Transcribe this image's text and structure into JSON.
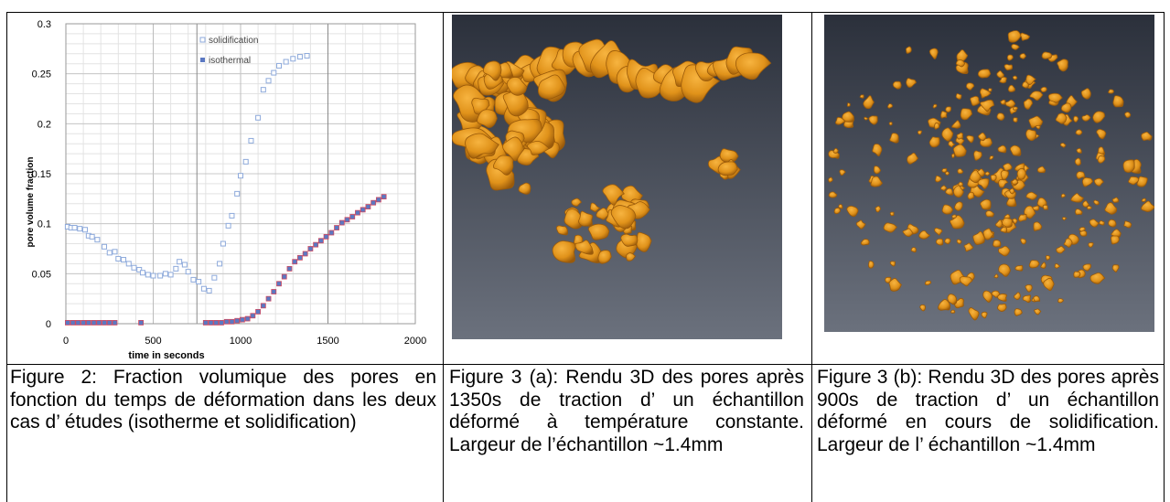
{
  "chart_data": {
    "type": "scatter",
    "xlabel": "time in seconds",
    "ylabel": "pore volume fraction",
    "xlim": [
      0,
      2000
    ],
    "ylim": [
      0,
      0.3
    ],
    "x_ticks": [
      "0",
      "500",
      "1000",
      "1500",
      "2000"
    ],
    "y_ticks": [
      "0",
      "0.05",
      "0.1",
      "0.15",
      "0.2",
      "0.25",
      "0.3"
    ],
    "grid": true,
    "legend": "top-right",
    "series": [
      {
        "name": "solidification",
        "marker": "hollow-square",
        "color": "#8eaadb",
        "points": [
          [
            10,
            0.097
          ],
          [
            30,
            0.096
          ],
          [
            50,
            0.096
          ],
          [
            80,
            0.095
          ],
          [
            110,
            0.094
          ],
          [
            130,
            0.088
          ],
          [
            150,
            0.087
          ],
          [
            180,
            0.084
          ],
          [
            220,
            0.077
          ],
          [
            250,
            0.071
          ],
          [
            280,
            0.072
          ],
          [
            300,
            0.065
          ],
          [
            330,
            0.064
          ],
          [
            360,
            0.06
          ],
          [
            390,
            0.056
          ],
          [
            420,
            0.054
          ],
          [
            440,
            0.051
          ],
          [
            470,
            0.049
          ],
          [
            500,
            0.048
          ],
          [
            540,
            0.048
          ],
          [
            570,
            0.05
          ],
          [
            600,
            0.049
          ],
          [
            630,
            0.055
          ],
          [
            650,
            0.062
          ],
          [
            680,
            0.059
          ],
          [
            700,
            0.052
          ],
          [
            730,
            0.044
          ],
          [
            760,
            0.042
          ],
          [
            790,
            0.035
          ],
          [
            820,
            0.033
          ],
          [
            850,
            0.046
          ],
          [
            880,
            0.06
          ],
          [
            900,
            0.08
          ],
          [
            930,
            0.098
          ],
          [
            950,
            0.108
          ],
          [
            980,
            0.13
          ],
          [
            1000,
            0.148
          ],
          [
            1030,
            0.162
          ],
          [
            1060,
            0.183
          ],
          [
            1100,
            0.206
          ],
          [
            1130,
            0.234
          ],
          [
            1160,
            0.243
          ],
          [
            1190,
            0.251
          ],
          [
            1220,
            0.258
          ],
          [
            1260,
            0.262
          ],
          [
            1300,
            0.265
          ],
          [
            1340,
            0.267
          ],
          [
            1380,
            0.268
          ]
        ]
      },
      {
        "name": "isothermal",
        "marker": "filled-square",
        "color": "#5b78c2",
        "points": [
          [
            10,
            0.001
          ],
          [
            40,
            0.001
          ],
          [
            70,
            0.001
          ],
          [
            100,
            0.001
          ],
          [
            130,
            0.001
          ],
          [
            160,
            0.001
          ],
          [
            190,
            0.001
          ],
          [
            220,
            0.001
          ],
          [
            250,
            0.001
          ],
          [
            280,
            0.001
          ],
          [
            430,
            0.001
          ],
          [
            800,
            0.001
          ],
          [
            830,
            0.001
          ],
          [
            860,
            0.001
          ],
          [
            890,
            0.001
          ],
          [
            920,
            0.002
          ],
          [
            950,
            0.002
          ],
          [
            980,
            0.003
          ],
          [
            1010,
            0.004
          ],
          [
            1040,
            0.005
          ],
          [
            1070,
            0.008
          ],
          [
            1100,
            0.012
          ],
          [
            1130,
            0.018
          ],
          [
            1160,
            0.025
          ],
          [
            1190,
            0.032
          ],
          [
            1220,
            0.04
          ],
          [
            1250,
            0.047
          ],
          [
            1280,
            0.055
          ],
          [
            1310,
            0.062
          ],
          [
            1340,
            0.066
          ],
          [
            1370,
            0.07
          ],
          [
            1400,
            0.075
          ],
          [
            1430,
            0.079
          ],
          [
            1460,
            0.083
          ],
          [
            1490,
            0.087
          ],
          [
            1520,
            0.091
          ],
          [
            1550,
            0.096
          ],
          [
            1580,
            0.101
          ],
          [
            1610,
            0.104
          ],
          [
            1640,
            0.107
          ],
          [
            1670,
            0.111
          ],
          [
            1700,
            0.114
          ],
          [
            1730,
            0.117
          ],
          [
            1760,
            0.121
          ],
          [
            1790,
            0.124
          ],
          [
            1820,
            0.127
          ]
        ]
      }
    ]
  },
  "captions": {
    "fig2": "Figure 2: Fraction volumique des pores en fonction du temps de déformation dans les deux cas d’ études (isotherme et solidification)",
    "fig3a": "Figure 3 (a): Rendu 3D des pores après 1350s de traction d’ un échantillon déformé à température constante. Largeur de l’échantillon ~1.4mm",
    "fig3b": "Figure 3 (b): Rendu 3D des pores après 900s de traction d’ un échantillon déformé en cours de solidification. Largeur de l’ échantillon ~1.4mm"
  },
  "colors": {
    "pore": "#e0921a",
    "pore_dark": "#a8620c",
    "bg_top": "#2a2f3a",
    "bg_bottom": "#6a707c"
  }
}
